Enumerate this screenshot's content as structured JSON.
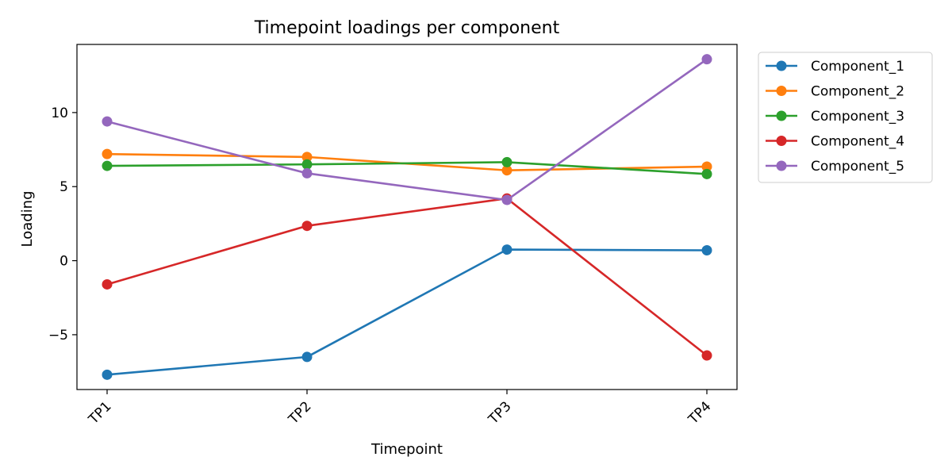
{
  "chart_data": {
    "type": "line",
    "title": "Timepoint loadings per component",
    "xlabel": "Timepoint",
    "ylabel": "Loading",
    "categories": [
      "TP1",
      "TP2",
      "TP3",
      "TP4"
    ],
    "ylim": [
      -8.7,
      14.6
    ],
    "yticks": [
      -5,
      0,
      5,
      10
    ],
    "ytick_labels": [
      "−5",
      "0",
      "5",
      "10"
    ],
    "grid": false,
    "legend_position": "outside-right",
    "series": [
      {
        "name": "Component_1",
        "color": "#1f77b4",
        "values": [
          -7.7,
          -6.5,
          0.75,
          0.7
        ]
      },
      {
        "name": "Component_2",
        "color": "#ff7f0e",
        "values": [
          7.2,
          7.0,
          6.1,
          6.35
        ]
      },
      {
        "name": "Component_3",
        "color": "#2ca02c",
        "values": [
          6.4,
          6.5,
          6.65,
          5.85
        ]
      },
      {
        "name": "Component_4",
        "color": "#d62728",
        "values": [
          -1.6,
          2.35,
          4.2,
          -6.4
        ]
      },
      {
        "name": "Component_5",
        "color": "#9467bd",
        "values": [
          9.4,
          5.9,
          4.1,
          13.6
        ]
      }
    ]
  }
}
